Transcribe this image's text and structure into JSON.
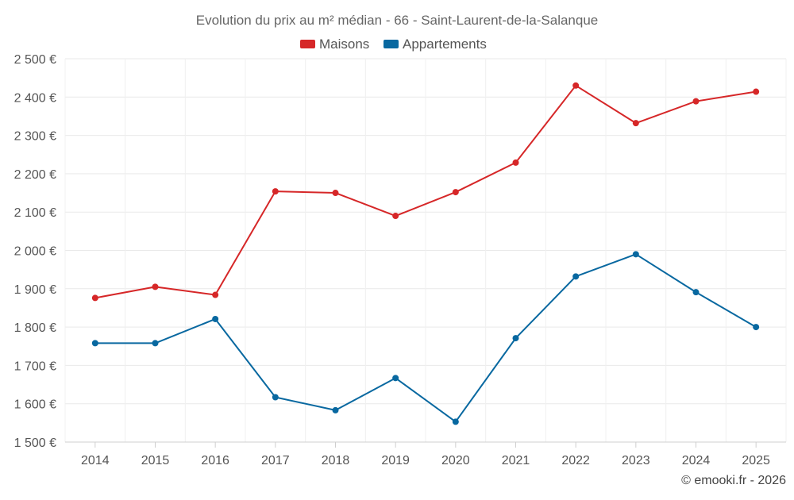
{
  "chart_data": {
    "type": "line",
    "title": "Evolution du prix au m² médian - 66 - Saint-Laurent-de-la-Salanque",
    "xlabel": "",
    "ylabel": "",
    "categories": [
      "2014",
      "2015",
      "2016",
      "2017",
      "2018",
      "2019",
      "2020",
      "2021",
      "2022",
      "2023",
      "2024",
      "2025"
    ],
    "ylim": [
      1500,
      2500
    ],
    "yticks": [
      1500,
      1600,
      1700,
      1800,
      1900,
      2000,
      2100,
      2200,
      2300,
      2400,
      2500
    ],
    "ytick_labels": [
      "1 500 €",
      "1 600 €",
      "1 700 €",
      "1 800 €",
      "1 900 €",
      "2 000 €",
      "2 100 €",
      "2 200 €",
      "2 300 €",
      "2 400 €",
      "2 500 €"
    ],
    "grid": true,
    "legend_position": "top-center",
    "series": [
      {
        "name": "Maisons",
        "color": "#d62728",
        "values": [
          1876,
          1905,
          1884,
          2154,
          2150,
          2090,
          2152,
          2229,
          2430,
          2332,
          2389,
          2414
        ]
      },
      {
        "name": "Appartements",
        "color": "#0868a0",
        "values": [
          1758,
          1758,
          1821,
          1617,
          1583,
          1667,
          1553,
          1771,
          1932,
          1990,
          1891,
          1800
        ]
      }
    ],
    "credit": "© emooki.fr - 2026"
  }
}
